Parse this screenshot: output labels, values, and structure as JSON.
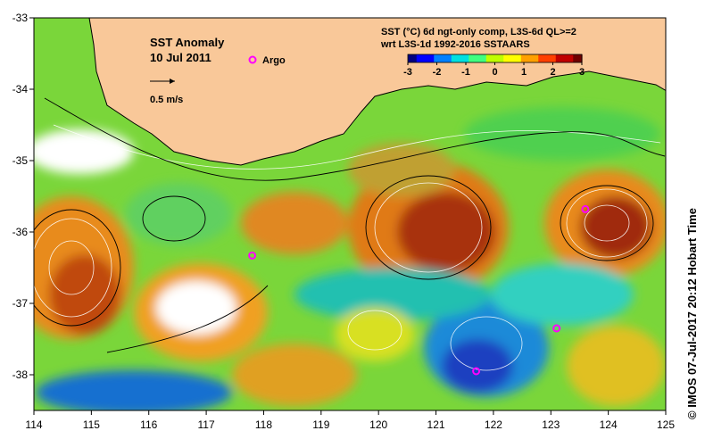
{
  "chart_data": {
    "type": "heatmap",
    "title": "SST Anomaly",
    "date": "10 Jul 2011",
    "product_line1": "SST (°C) 6d ngt-only comp, L3S-6d QL>=2",
    "product_line2": "wrt L3S-1d 1992-2016 SSTAARS",
    "x": [
      114,
      115,
      116,
      117,
      118,
      119,
      120,
      121,
      122,
      123,
      124,
      125
    ],
    "y": [
      -33,
      -34,
      -35,
      -36,
      -37,
      -38
    ],
    "xlim": [
      114,
      125
    ],
    "ylim": [
      -38.5,
      -33
    ],
    "colorbar": {
      "ticks": [
        "-3",
        "-2",
        "-1",
        "0",
        "1",
        "2",
        "3"
      ],
      "range": [
        -3,
        3
      ],
      "colors": [
        "#000080",
        "#0000ff",
        "#0080ff",
        "#00e0e0",
        "#40ff80",
        "#c0ff00",
        "#ffff00",
        "#ffa000",
        "#ff4000",
        "#c00000",
        "#700000"
      ]
    },
    "velocity_scale_label": "0.5 m/s",
    "argo_label": "Argo",
    "argo_floats": [
      [
        117.8,
        -36.33
      ],
      [
        121.7,
        -37.95
      ],
      [
        123.1,
        -37.35
      ],
      [
        123.6,
        -35.68
      ]
    ],
    "warm_eddies": [
      {
        "lon": 114.8,
        "lat": -36.5,
        "anom": 2.6
      },
      {
        "lon": 116.7,
        "lat": -37.0,
        "anom": 2.4
      },
      {
        "lon": 120.8,
        "lat": -35.9,
        "anom": 2.3
      },
      {
        "lon": 123.7,
        "lat": -36.0,
        "anom": 2.7
      },
      {
        "lon": 118.7,
        "lat": -35.8,
        "anom": 1.9
      }
    ],
    "cool_patches": [
      {
        "lon": 121.8,
        "lat": -37.7,
        "anom": -1.8
      },
      {
        "lon": 116.8,
        "lat": -38.2,
        "anom": -1.2
      }
    ]
  },
  "credit": "© IMOS 07-Jul-2017 20:12 Hobart Time",
  "colors": {
    "land": "#f9c899",
    "argo": "#ff00ff",
    "background": "#ffffff"
  }
}
